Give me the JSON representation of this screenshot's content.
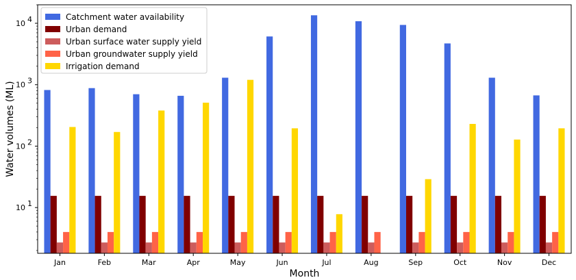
{
  "chart_data": {
    "type": "bar",
    "title": "",
    "xlabel": "Month",
    "ylabel": "Water volumes (ML)",
    "yscale": "log",
    "ylim": [
      1.8,
      20000
    ],
    "y_ticks": [
      {
        "value": 10,
        "base": "10",
        "exp": "1"
      },
      {
        "value": 100,
        "base": "10",
        "exp": "2"
      },
      {
        "value": 1000,
        "base": "10",
        "exp": "3"
      },
      {
        "value": 10000,
        "base": "10",
        "exp": "4"
      }
    ],
    "grid": false,
    "legend_position": "top-left",
    "categories": [
      "Jan",
      "Feb",
      "Mar",
      "Apr",
      "May",
      "Jun",
      "Jul",
      "Aug",
      "Sep",
      "Oct",
      "Nov",
      "Dec"
    ],
    "series": [
      {
        "name": "Catchment water availability",
        "color": "#4169e1",
        "values": [
          820,
          880,
          700,
          660,
          1300,
          6100,
          13500,
          10800,
          9400,
          4700,
          1300,
          670
        ]
      },
      {
        "name": "Urban demand",
        "color": "#800000",
        "values": [
          15.5,
          15.5,
          15.5,
          15.5,
          15.5,
          15.5,
          15.5,
          15.5,
          15.5,
          15.5,
          15.5,
          15.5
        ]
      },
      {
        "name": "Urban surface water supply yield",
        "color": "#cd5c5c",
        "values": [
          2.7,
          2.7,
          2.7,
          2.7,
          2.7,
          2.7,
          2.7,
          2.7,
          2.7,
          2.7,
          2.7,
          2.7
        ]
      },
      {
        "name": "Urban groundwater supply yield",
        "color": "#ff6347",
        "values": [
          4,
          4,
          4,
          4,
          4,
          4,
          4,
          4,
          4,
          4,
          4,
          4
        ]
      },
      {
        "name": "Irrigation demand",
        "color": "#ffd700",
        "values": [
          205,
          170,
          380,
          510,
          1200,
          195,
          7.8,
          null,
          29,
          230,
          128,
          195
        ]
      }
    ]
  }
}
